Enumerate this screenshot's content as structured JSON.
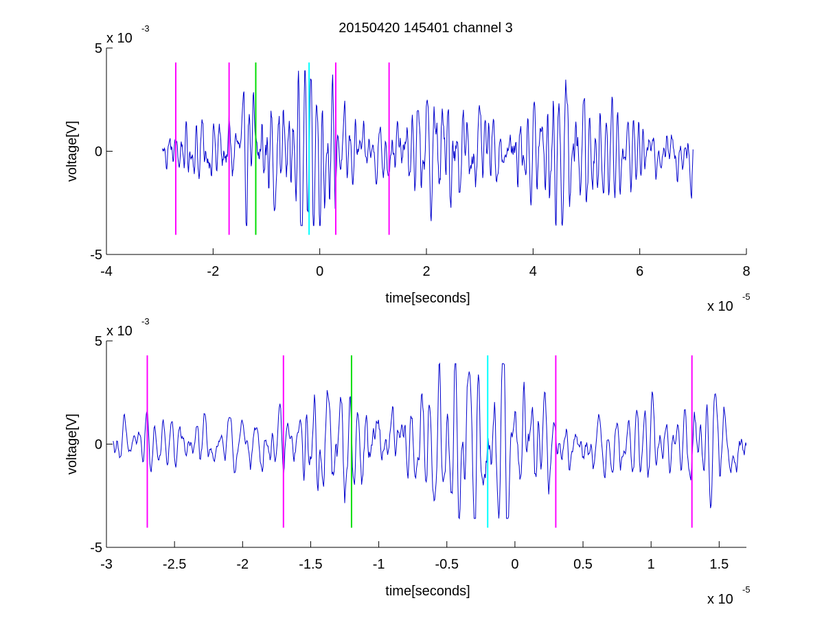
{
  "figure": {
    "title": "20150420 145401 channel 3",
    "background": "#ffffff"
  },
  "chart_data": [
    {
      "type": "line",
      "title": "20150420 145401 channel 3",
      "xlabel": "time[seconds]",
      "ylabel": "voltage[V]",
      "x_exponent_label": "x 10",
      "x_exponent": "-5",
      "y_exponent_label": "x 10",
      "y_exponent": "-3",
      "xlim": [
        -4,
        8
      ],
      "ylim": [
        -5,
        5
      ],
      "xticks": [
        -4,
        -2,
        0,
        2,
        4,
        6,
        8
      ],
      "xtick_labels": [
        "-4",
        "-2",
        "0",
        "2",
        "4",
        "6",
        "8"
      ],
      "yticks": [
        -5,
        0,
        5
      ],
      "ytick_labels": [
        "-5",
        "0",
        "5"
      ],
      "grid": false,
      "signal": {
        "x_start": -2.95,
        "x_end": 7.0,
        "color": "#0000cc",
        "envelope": [
          [
            -2.95,
            1.0
          ],
          [
            -1.5,
            2.0
          ],
          [
            -1.2,
            2.8
          ],
          [
            -0.8,
            2.6
          ],
          [
            -0.3,
            3.2
          ],
          [
            0.0,
            3.0
          ],
          [
            0.3,
            2.0
          ],
          [
            0.8,
            1.2
          ],
          [
            1.6,
            1.6
          ],
          [
            2.2,
            2.9
          ],
          [
            2.8,
            2.2
          ],
          [
            3.5,
            1.2
          ],
          [
            4.0,
            2.2
          ],
          [
            4.5,
            3.0
          ],
          [
            5.0,
            2.6
          ],
          [
            5.5,
            1.6
          ],
          [
            6.2,
            1.0
          ],
          [
            6.8,
            1.3
          ],
          [
            7.0,
            2.6
          ]
        ]
      },
      "markers": [
        {
          "x": -2.7,
          "color": "#ff00ff"
        },
        {
          "x": -1.7,
          "color": "#ff00ff"
        },
        {
          "x": -1.2,
          "color": "#00dd00"
        },
        {
          "x": -0.2,
          "color": "#00ffff"
        },
        {
          "x": 0.3,
          "color": "#ff00ff"
        },
        {
          "x": 1.3,
          "color": "#ff00ff"
        }
      ],
      "marker_range": [
        -4.05,
        4.3
      ]
    },
    {
      "type": "line",
      "xlabel": "time[seconds]",
      "ylabel": "voltage[V]",
      "x_exponent_label": "x 10",
      "x_exponent": "-5",
      "y_exponent_label": "x 10",
      "y_exponent": "-3",
      "xlim": [
        -3.0,
        1.7
      ],
      "ylim": [
        -5,
        5
      ],
      "xticks": [
        -3,
        -2.5,
        -2,
        -1.5,
        -1,
        -0.5,
        0,
        0.5,
        1,
        1.5
      ],
      "xtick_labels": [
        "-3",
        "-2.5",
        "-2",
        "-1.5",
        "-1",
        "-0.5",
        "0",
        "0.5",
        "1",
        "1.5"
      ],
      "yticks": [
        -5,
        0,
        5
      ],
      "ytick_labels": [
        "-5",
        "0",
        "5"
      ],
      "grid": false,
      "signal": {
        "x_start": -2.95,
        "x_end": 1.7,
        "color": "#0000cc",
        "envelope": [
          [
            -2.95,
            1.0
          ],
          [
            -2.0,
            1.2
          ],
          [
            -1.6,
            1.4
          ],
          [
            -1.4,
            3.0
          ],
          [
            -1.2,
            2.4
          ],
          [
            -0.9,
            1.8
          ],
          [
            -0.6,
            2.8
          ],
          [
            -0.4,
            3.0
          ],
          [
            -0.1,
            3.6
          ],
          [
            0.1,
            2.6
          ],
          [
            0.3,
            1.2
          ],
          [
            0.8,
            1.4
          ],
          [
            1.1,
            1.6
          ],
          [
            1.4,
            1.6
          ],
          [
            1.7,
            1.6
          ]
        ]
      },
      "markers": [
        {
          "x": -2.7,
          "color": "#ff00ff"
        },
        {
          "x": -1.7,
          "color": "#ff00ff"
        },
        {
          "x": -1.2,
          "color": "#00dd00"
        },
        {
          "x": -0.2,
          "color": "#00ffff"
        },
        {
          "x": 0.3,
          "color": "#ff00ff"
        },
        {
          "x": 1.3,
          "color": "#ff00ff"
        }
      ],
      "marker_range": [
        -4.05,
        4.3
      ]
    }
  ]
}
